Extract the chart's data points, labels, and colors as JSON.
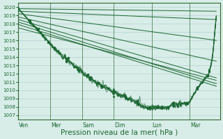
{
  "bg_color": "#d8ede8",
  "grid_color": "#b0cccc",
  "line_color": "#1a6630",
  "xlabel": "Pression niveau de la mer( hPa )",
  "xlabel_fontsize": 7.5,
  "tick_labels": [
    "Ven",
    "Mer",
    "Sam",
    "Dim",
    "Lun",
    "Mar"
  ],
  "ylim": [
    1006.5,
    1020.5
  ],
  "xlim": [
    0,
    5.3
  ],
  "yticks": [
    1007,
    1008,
    1009,
    1010,
    1011,
    1012,
    1013,
    1014,
    1015,
    1016,
    1017,
    1018,
    1019,
    1020
  ],
  "fan_lines": [
    [
      1019.8,
      1019.5
    ],
    [
      1019.5,
      1018.5
    ],
    [
      1019.2,
      1016.0
    ],
    [
      1018.8,
      1013.5
    ],
    [
      1018.5,
      1011.5
    ],
    [
      1018.2,
      1010.8
    ],
    [
      1017.9,
      1010.5
    ],
    [
      1017.5,
      1011.2
    ]
  ]
}
